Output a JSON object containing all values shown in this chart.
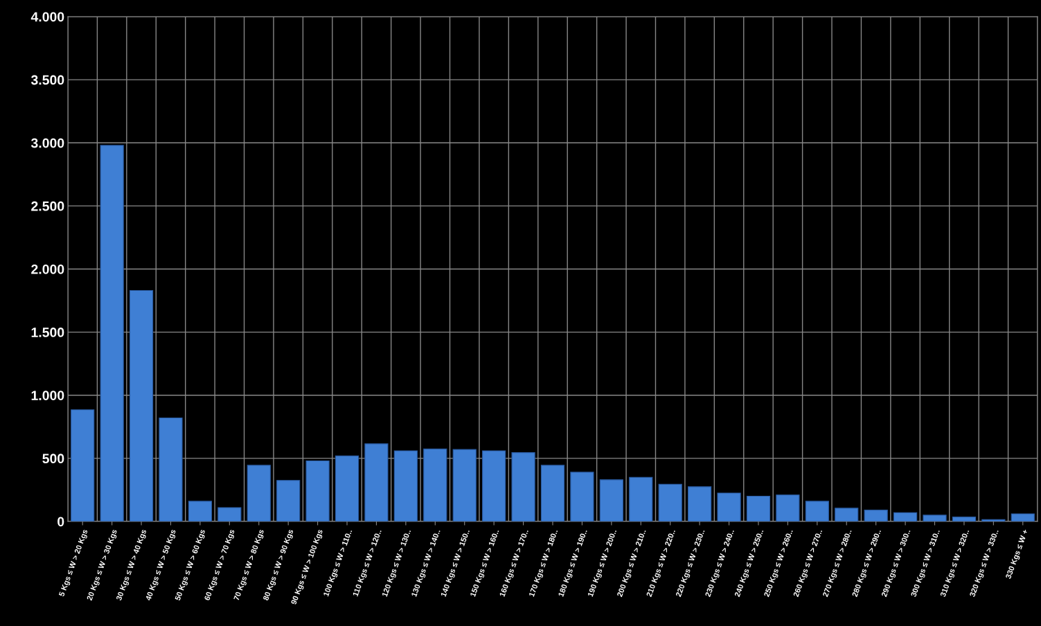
{
  "chart_data": {
    "type": "bar",
    "categories": [
      "5 Kgs ≤ W > 20 Kgs",
      "20 Kgs ≤ W > 30 Kgs",
      "30 Kgs ≤ W > 40 Kgs",
      "40 Kgs ≤ W > 50 Kgs",
      "50 Kgs ≤ W > 60 Kgs",
      "60 Kgs ≤ W > 70 Kgs",
      "70 Kgs ≤ W > 80 Kgs",
      "80 Kgs ≤ W > 90 Kgs",
      "90 Kgs ≤ W > 100 Kgs",
      "100 Kgs ≤ W > 110..",
      "110 Kgs ≤ W > 120..",
      "120 Kgs ≤ W > 130..",
      "130 Kgs ≤ W > 140..",
      "140 Kgs ≤ W > 150..",
      "150 Kgs ≤ W > 160..",
      "160 Kgs ≤ W > 170..",
      "170 Kgs ≤ W > 180..",
      "180 Kgs ≤ W > 190..",
      "190 Kgs ≤ W > 200..",
      "200 Kgs ≤ W > 210..",
      "210 Kgs ≤ W > 220..",
      "220 Kgs ≤ W > 230..",
      "230 Kgs ≤ W > 240..",
      "240 Kgs ≤ W > 250..",
      "250 Kgs ≤ W > 260..",
      "260 Kgs ≤ W > 270..",
      "270 Kgs ≤ W > 280..",
      "280 Kgs ≤ W > 290..",
      "290 Kgs ≤ W > 300..",
      "300 Kgs ≤ W > 310..",
      "310 Kgs ≤ W > 320..",
      "320 Kgs ≤ W > 330..",
      "330 Kgs ≤ W +"
    ],
    "values": [
      885,
      2980,
      1830,
      820,
      160,
      110,
      445,
      325,
      480,
      520,
      615,
      560,
      575,
      570,
      560,
      545,
      445,
      390,
      330,
      350,
      295,
      275,
      225,
      200,
      210,
      160,
      105,
      90,
      70,
      50,
      35,
      15,
      60
    ],
    "color": "#3f7fd4",
    "ylim": [
      0,
      4000
    ],
    "yticks": [
      {
        "value": 0,
        "label": "0"
      },
      {
        "value": 500,
        "label": "500"
      },
      {
        "value": 1000,
        "label": "1.000"
      },
      {
        "value": 1500,
        "label": "1.500"
      },
      {
        "value": 2000,
        "label": "2.000"
      },
      {
        "value": 2500,
        "label": "2.500"
      },
      {
        "value": 3000,
        "label": "3.000"
      },
      {
        "value": 3500,
        "label": "3.500"
      },
      {
        "value": 4000,
        "label": "4.000"
      }
    ],
    "grid": true
  }
}
